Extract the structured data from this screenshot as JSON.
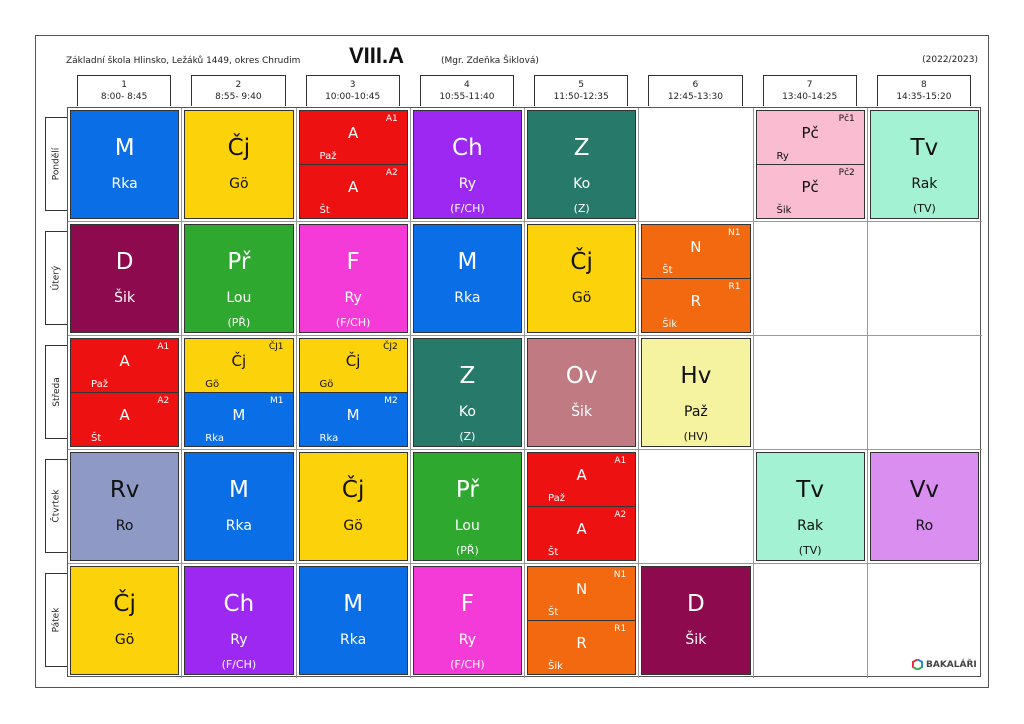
{
  "header": {
    "school": "Základní škola Hlinsko, Ležáků 1449, okres Chrudim",
    "class_name": "VIII.A",
    "teacher": "(Mgr. Zdeňka Šiklová)",
    "year": "(2022/2023)"
  },
  "periods": [
    {
      "num": "1",
      "time": "8:00- 8:45"
    },
    {
      "num": "2",
      "time": "8:55- 9:40"
    },
    {
      "num": "3",
      "time": "10:00-10:45"
    },
    {
      "num": "4",
      "time": "10:55-11:40"
    },
    {
      "num": "5",
      "time": "11:50-12:35"
    },
    {
      "num": "6",
      "time": "12:45-13:30"
    },
    {
      "num": "7",
      "time": "13:40-14:25"
    },
    {
      "num": "8",
      "time": "14:35-15:20"
    }
  ],
  "days": [
    {
      "name": "Pondělí",
      "slots": [
        {
          "type": "full",
          "subject": "M",
          "teacher": "Rka",
          "room": "",
          "color": "#0a6fe6"
        },
        {
          "type": "full",
          "subject": "Čj",
          "teacher": "Gö",
          "room": "",
          "color": "#fcd20a"
        },
        {
          "type": "split",
          "color": "#ee1111",
          "top": {
            "group": "A1",
            "subject": "A",
            "teacher": "Paž"
          },
          "bottom": {
            "group": "A2",
            "subject": "A",
            "teacher": "Št"
          }
        },
        {
          "type": "full",
          "subject": "Ch",
          "teacher": "Ry",
          "room": "(F/CH)",
          "color": "#9d28f2"
        },
        {
          "type": "full",
          "subject": "Z",
          "teacher": "Ko",
          "room": "(Z)",
          "color": "#27796a"
        },
        {
          "type": "empty"
        },
        {
          "type": "split",
          "color": "#f9bcd0",
          "top": {
            "group": "Pč1",
            "subject": "Pč",
            "teacher": "Ry"
          },
          "bottom": {
            "group": "Pč2",
            "subject": "Pč",
            "teacher": "Šik"
          }
        },
        {
          "type": "full",
          "subject": "Tv",
          "teacher": "Rak",
          "room": "(TV)",
          "color": "#a3f2d4"
        }
      ]
    },
    {
      "name": "Úterý",
      "slots": [
        {
          "type": "full",
          "subject": "D",
          "teacher": "Šik",
          "room": "",
          "color": "#8e0a4e"
        },
        {
          "type": "full",
          "subject": "Př",
          "teacher": "Lou",
          "room": "(PŘ)",
          "color": "#2fa830"
        },
        {
          "type": "full",
          "subject": "F",
          "teacher": "Ry",
          "room": "(F/CH)",
          "color": "#f43bd8"
        },
        {
          "type": "full",
          "subject": "M",
          "teacher": "Rka",
          "room": "",
          "color": "#0a6fe6"
        },
        {
          "type": "full",
          "subject": "Čj",
          "teacher": "Gö",
          "room": "",
          "color": "#fcd20a"
        },
        {
          "type": "split",
          "color": "#f2690f",
          "top": {
            "group": "N1",
            "subject": "N",
            "teacher": "Št"
          },
          "bottom": {
            "group": "R1",
            "subject": "R",
            "teacher": "Šik"
          }
        },
        {
          "type": "empty"
        },
        {
          "type": "empty"
        }
      ]
    },
    {
      "name": "Středa",
      "slots": [
        {
          "type": "split",
          "color": "#ee1111",
          "top": {
            "group": "A1",
            "subject": "A",
            "teacher": "Paž"
          },
          "bottom": {
            "group": "A2",
            "subject": "A",
            "teacher": "Št"
          }
        },
        {
          "type": "split2",
          "topColor": "#fcd20a",
          "bottomColor": "#0a6fe6",
          "top": {
            "group": "ČJ1",
            "subject": "Čj",
            "teacher": "Gö"
          },
          "bottom": {
            "group": "M1",
            "subject": "M",
            "teacher": "Rka"
          }
        },
        {
          "type": "split2",
          "topColor": "#fcd20a",
          "bottomColor": "#0a6fe6",
          "top": {
            "group": "ČJ2",
            "subject": "Čj",
            "teacher": "Gö"
          },
          "bottom": {
            "group": "M2",
            "subject": "M",
            "teacher": "Rka"
          }
        },
        {
          "type": "full",
          "subject": "Z",
          "teacher": "Ko",
          "room": "(Z)",
          "color": "#27796a"
        },
        {
          "type": "full",
          "subject": "Ov",
          "teacher": "Šik",
          "room": "",
          "color": "#c07a82"
        },
        {
          "type": "full",
          "subject": "Hv",
          "teacher": "Paž",
          "room": "(HV)",
          "color": "#f5f3a0"
        },
        {
          "type": "empty"
        },
        {
          "type": "empty"
        }
      ]
    },
    {
      "name": "Čtvrtek",
      "slots": [
        {
          "type": "full",
          "subject": "Rv",
          "teacher": "Ro",
          "room": "",
          "color": "#8e9ac5"
        },
        {
          "type": "full",
          "subject": "M",
          "teacher": "Rka",
          "room": "",
          "color": "#0a6fe6"
        },
        {
          "type": "full",
          "subject": "Čj",
          "teacher": "Gö",
          "room": "",
          "color": "#fcd20a"
        },
        {
          "type": "full",
          "subject": "Př",
          "teacher": "Lou",
          "room": "(PŘ)",
          "color": "#2fa830"
        },
        {
          "type": "split",
          "color": "#ee1111",
          "top": {
            "group": "A1",
            "subject": "A",
            "teacher": "Paž"
          },
          "bottom": {
            "group": "A2",
            "subject": "A",
            "teacher": "Št"
          }
        },
        {
          "type": "empty"
        },
        {
          "type": "full",
          "subject": "Tv",
          "teacher": "Rak",
          "room": "(TV)",
          "color": "#a3f2d4"
        },
        {
          "type": "full",
          "subject": "Vv",
          "teacher": "Ro",
          "room": "",
          "color": "#d98ef0"
        }
      ]
    },
    {
      "name": "Pátek",
      "slots": [
        {
          "type": "full",
          "subject": "Čj",
          "teacher": "Gö",
          "room": "",
          "color": "#fcd20a"
        },
        {
          "type": "full",
          "subject": "Ch",
          "teacher": "Ry",
          "room": "(F/CH)",
          "color": "#9d28f2"
        },
        {
          "type": "full",
          "subject": "M",
          "teacher": "Rka",
          "room": "",
          "color": "#0a6fe6"
        },
        {
          "type": "full",
          "subject": "F",
          "teacher": "Ry",
          "room": "(F/CH)",
          "color": "#f43bd8"
        },
        {
          "type": "split",
          "color": "#f2690f",
          "top": {
            "group": "N1",
            "subject": "N",
            "teacher": "Št"
          },
          "bottom": {
            "group": "R1",
            "subject": "R",
            "teacher": "Šik"
          }
        },
        {
          "type": "full",
          "subject": "D",
          "teacher": "Šik",
          "room": "",
          "color": "#8e0a4e"
        },
        {
          "type": "empty"
        },
        {
          "type": "empty"
        }
      ]
    }
  ],
  "footer": {
    "logo_text": "BAKALÁŘI"
  },
  "text_colors": {
    "dark_bg_text": "#ffffff",
    "light_bg_text": "#111111"
  }
}
